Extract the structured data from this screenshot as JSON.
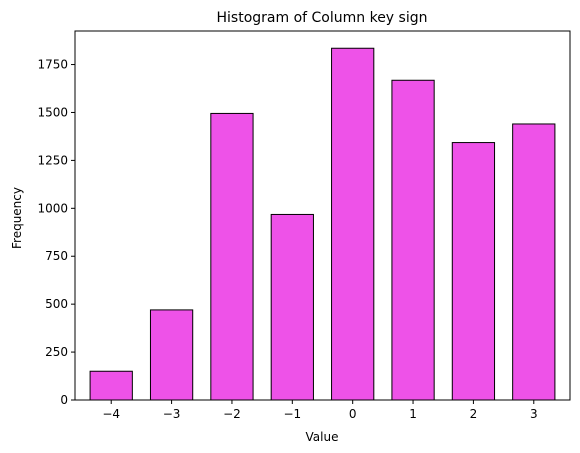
{
  "chart_data": {
    "type": "bar",
    "title": "Histogram of Column key sign",
    "xlabel": "Value",
    "ylabel": "Frequency",
    "categories": [
      "−4",
      "−3",
      "−2",
      "−1",
      "0",
      "1",
      "2",
      "3"
    ],
    "x": [
      -4,
      -3,
      -2,
      -1,
      0,
      1,
      2,
      3
    ],
    "values": [
      150,
      470,
      1495,
      968,
      1835,
      1668,
      1343,
      1440
    ],
    "xlim": [
      -4.6,
      3.6
    ],
    "ylim": [
      0,
      1925
    ],
    "yticks": [
      0,
      250,
      500,
      750,
      1000,
      1250,
      1500,
      1750
    ],
    "bar_width": 0.7,
    "colors": {
      "bar": "#ee52e8",
      "edge": "#000000"
    },
    "grid": false
  }
}
